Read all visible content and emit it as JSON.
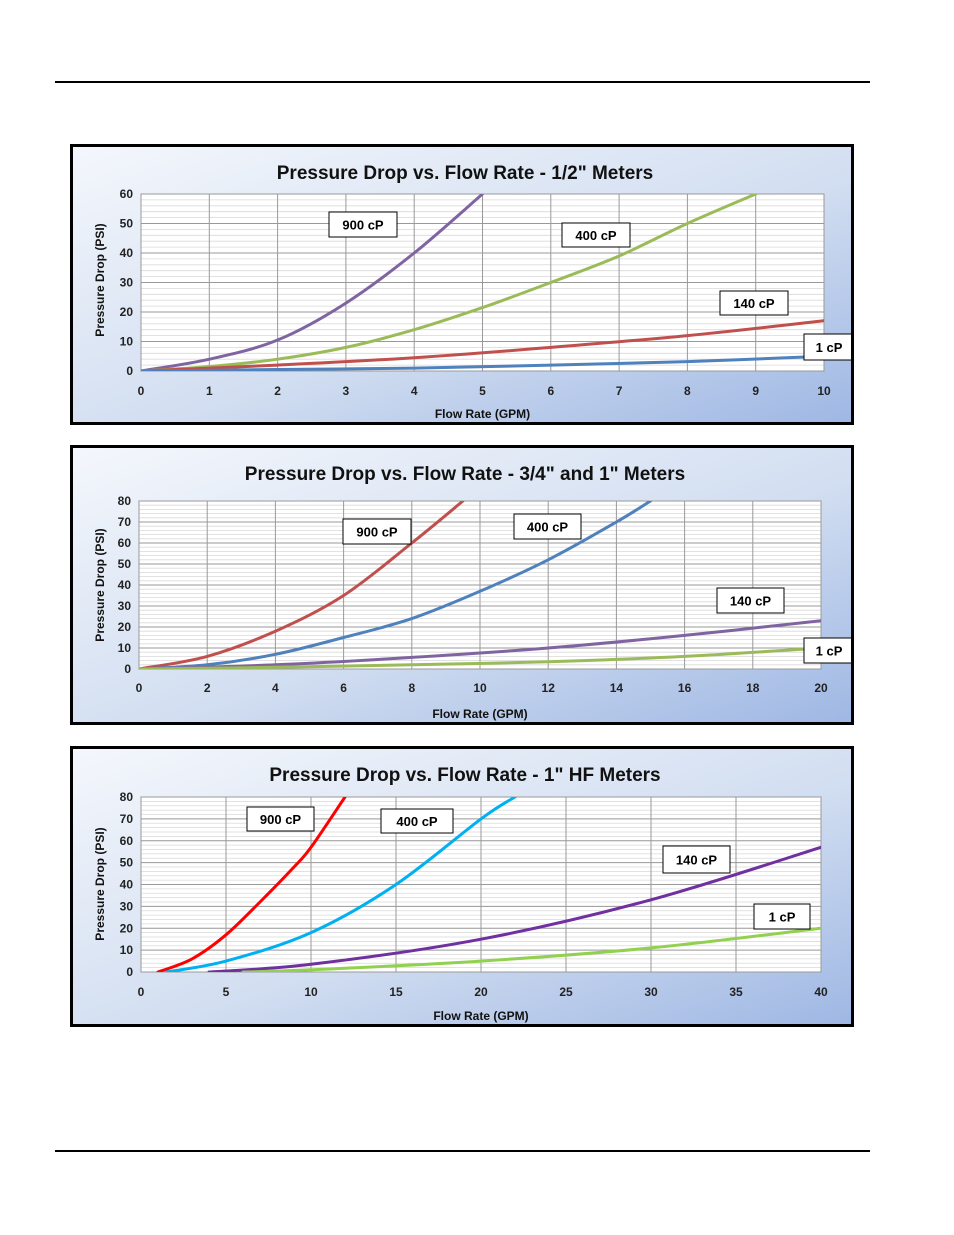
{
  "chart_data": [
    {
      "type": "line",
      "title": "Pressure Drop  vs. Flow Rate - 1/2\" Meters",
      "xlabel": "Flow Rate (GPM)",
      "ylabel": "Pressure Drop (PSI)",
      "xlim": [
        0,
        10
      ],
      "ylim": [
        0,
        60
      ],
      "xticks": [
        0,
        1,
        2,
        3,
        4,
        5,
        6,
        7,
        8,
        9,
        10
      ],
      "yticks": [
        0,
        10,
        20,
        30,
        40,
        50,
        60
      ],
      "grid": true,
      "series": [
        {
          "name": "900 cP",
          "color": "#8064a2",
          "x": [
            0,
            1,
            2,
            3,
            4,
            5
          ],
          "y": [
            0,
            4,
            10.5,
            23,
            40,
            60
          ]
        },
        {
          "name": "400 cP",
          "color": "#9bbb59",
          "x": [
            0,
            1,
            2,
            3,
            4,
            5,
            6,
            7,
            8,
            9
          ],
          "y": [
            0,
            1.5,
            4,
            8,
            14,
            21.5,
            30,
            39,
            50,
            60
          ]
        },
        {
          "name": "140 cP",
          "color": "#c0504d",
          "x": [
            0,
            2,
            4,
            6,
            8,
            10
          ],
          "y": [
            0,
            2,
            4.5,
            8,
            12,
            17
          ]
        },
        {
          "name": "1 cP",
          "color": "#4f81bd",
          "x": [
            0,
            2,
            4,
            6,
            8,
            10
          ],
          "y": [
            0,
            0.5,
            1,
            2,
            3.2,
            5
          ]
        }
      ]
    },
    {
      "type": "line",
      "title": "Pressure Drop vs. Flow Rate - 3/4\" and 1\" Meters",
      "xlabel": "Flow Rate (GPM)",
      "ylabel": "Pressure Drop (PSI)",
      "xlim": [
        0,
        20
      ],
      "ylim": [
        0,
        80
      ],
      "xticks": [
        0,
        2,
        4,
        6,
        8,
        10,
        12,
        14,
        16,
        18,
        20
      ],
      "yticks": [
        0,
        10,
        20,
        30,
        40,
        50,
        60,
        70,
        80
      ],
      "grid": true,
      "series": [
        {
          "name": "900 cP",
          "color": "#c0504d",
          "x": [
            0,
            2,
            4,
            6,
            8,
            9.5
          ],
          "y": [
            0,
            6,
            18,
            35,
            60,
            80
          ]
        },
        {
          "name": "400 cP",
          "color": "#4f81bd",
          "x": [
            0,
            2,
            4,
            6,
            8,
            10,
            12,
            14,
            15
          ],
          "y": [
            0,
            2,
            7,
            15,
            24,
            37,
            52,
            70,
            80
          ]
        },
        {
          "name": "140 cP",
          "color": "#8064a2",
          "x": [
            0,
            4,
            8,
            12,
            16,
            20
          ],
          "y": [
            0,
            2,
            5.5,
            10,
            16,
            23
          ]
        },
        {
          "name": "1 cP",
          "color": "#9bbb59",
          "x": [
            0,
            4,
            8,
            12,
            16,
            20
          ],
          "y": [
            0,
            0.8,
            2,
            3.5,
            6,
            10
          ]
        }
      ]
    },
    {
      "type": "line",
      "title": "Pressure Drop  vs. Flow Rate - 1\" HF Meters",
      "xlabel": "Flow Rate (GPM)",
      "ylabel": "Pressure Drop (PSI)",
      "xlim": [
        0,
        40
      ],
      "ylim": [
        0,
        80
      ],
      "xticks": [
        0,
        5,
        10,
        15,
        20,
        25,
        30,
        35,
        40
      ],
      "yticks": [
        0,
        10,
        20,
        30,
        40,
        50,
        60,
        70,
        80
      ],
      "grid": true,
      "series": [
        {
          "name": "900 cP",
          "color": "#ff0000",
          "x": [
            1,
            3,
            5,
            7,
            9,
            10,
            12
          ],
          "y": [
            0,
            6,
            17,
            32,
            48,
            57,
            80
          ]
        },
        {
          "name": "400 cP",
          "color": "#00b0f0",
          "x": [
            1.5,
            5,
            10,
            15,
            20,
            22
          ],
          "y": [
            0,
            5,
            18,
            40,
            70,
            80
          ]
        },
        {
          "name": "140 cP",
          "color": "#7030a0",
          "x": [
            4,
            10,
            20,
            30,
            40
          ],
          "y": [
            0,
            3.5,
            15,
            33,
            57
          ]
        },
        {
          "name": "1 cP",
          "color": "#92d050",
          "x": [
            6,
            10,
            20,
            30,
            40
          ],
          "y": [
            0,
            1,
            5,
            11,
            20
          ]
        }
      ]
    }
  ]
}
